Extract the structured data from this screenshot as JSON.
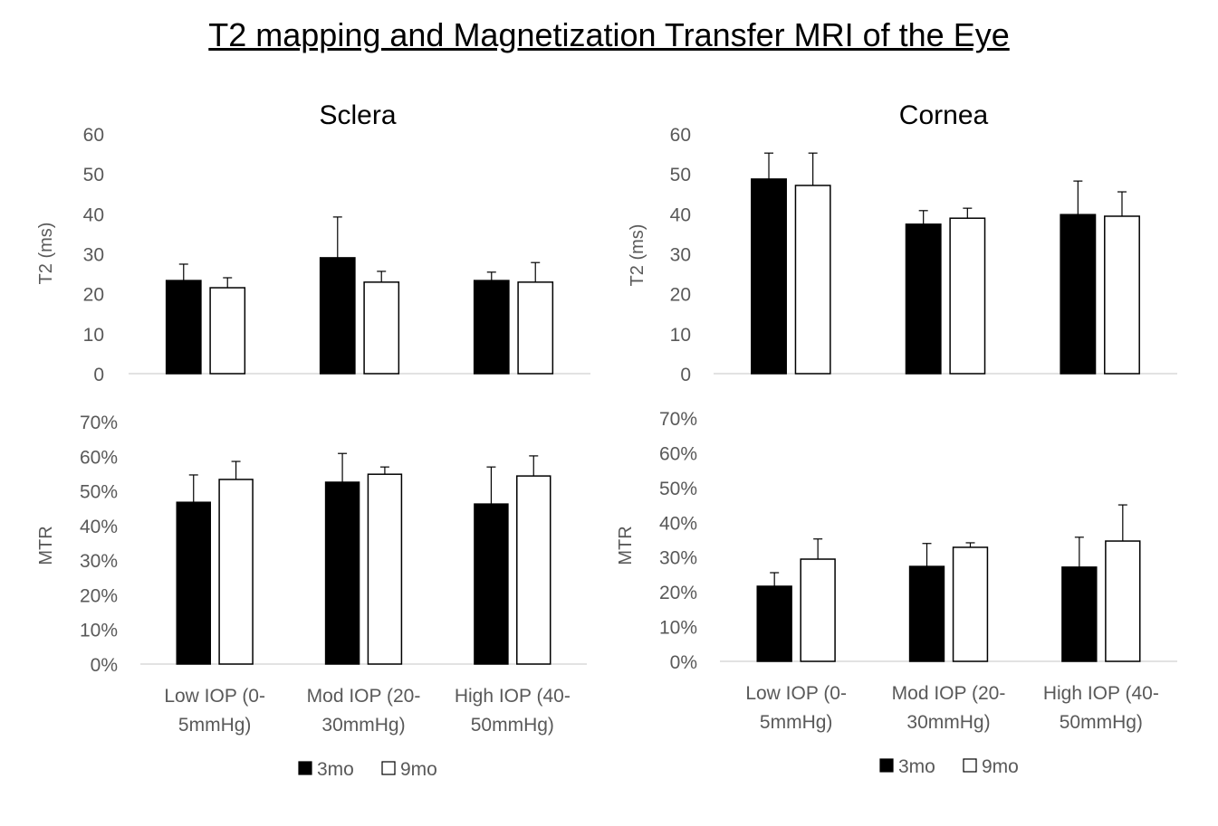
{
  "title": "T2 mapping and Magnetization Transfer MRI of the Eye",
  "chart_data": [
    {
      "type": "bar",
      "panel": "Sclera T2",
      "title": "Sclera",
      "xlabel": "",
      "ylabel": "T2 (ms)",
      "ylim": [
        0,
        60
      ],
      "yticks": [
        "0",
        "10",
        "20",
        "30",
        "40",
        "50",
        "60"
      ],
      "categories": [
        "Low IOP (0-5mmHg)",
        "Mod IOP (20-30mmHg)",
        "High IOP (40-50mmHg)"
      ],
      "show_categories": false,
      "grid": false,
      "series": [
        {
          "name": "3mo",
          "color": "#000000",
          "values": [
            23.3,
            29.0,
            23.3
          ],
          "error_upper": [
            27.4,
            39.2,
            25.4
          ]
        },
        {
          "name": "9mo",
          "color": "#ffffff",
          "values": [
            21.5,
            22.9,
            22.9
          ],
          "error_upper": [
            24.0,
            25.6,
            27.8
          ]
        }
      ]
    },
    {
      "type": "bar",
      "panel": "Cornea T2",
      "title": "Cornea",
      "xlabel": "",
      "ylabel": "T2 (ms)",
      "ylim": [
        0,
        60
      ],
      "yticks": [
        "0",
        "10",
        "20",
        "30",
        "40",
        "50",
        "60"
      ],
      "categories": [
        "Low IOP (0-5mmHg)",
        "Mod IOP (20-30mmHg)",
        "High IOP (40-50mmHg)"
      ],
      "show_categories": false,
      "grid": false,
      "series": [
        {
          "name": "3mo",
          "color": "#000000",
          "values": [
            48.7,
            37.4,
            39.8
          ],
          "error_upper": [
            55.2,
            40.8,
            48.2
          ]
        },
        {
          "name": "9mo",
          "color": "#ffffff",
          "values": [
            47.1,
            38.9,
            39.4
          ],
          "error_upper": [
            55.2,
            41.4,
            45.5
          ]
        }
      ]
    },
    {
      "type": "bar",
      "panel": "Sclera MTR",
      "title": "",
      "xlabel": "",
      "ylabel": "MTR",
      "ylim": [
        0,
        70
      ],
      "yticks": [
        "0%",
        "10%",
        "20%",
        "30%",
        "40%",
        "50%",
        "60%",
        "70%"
      ],
      "categories": [
        "Low IOP (0-5mmHg)",
        "Mod IOP (20-30mmHg)",
        "High IOP (40-50mmHg)"
      ],
      "show_categories": true,
      "grid": false,
      "legend": "bottom",
      "series": [
        {
          "name": "3mo",
          "color": "#000000",
          "values": [
            46.7,
            52.5,
            46.2
          ],
          "error_upper": [
            54.6,
            60.8,
            56.9
          ]
        },
        {
          "name": "9mo",
          "color": "#ffffff",
          "values": [
            53.3,
            54.8,
            54.3
          ],
          "error_upper": [
            58.5,
            56.9,
            60.1
          ]
        }
      ]
    },
    {
      "type": "bar",
      "panel": "Cornea MTR",
      "title": "",
      "xlabel": "",
      "ylabel": "MTR",
      "ylim": [
        0,
        70
      ],
      "yticks": [
        "0%",
        "10%",
        "20%",
        "30%",
        "40%",
        "50%",
        "60%",
        "70%"
      ],
      "categories": [
        "Low IOP (0-5mmHg)",
        "Mod IOP (20-30mmHg)",
        "High IOP (40-50mmHg)"
      ],
      "show_categories": true,
      "grid": false,
      "legend": "bottom",
      "series": [
        {
          "name": "3mo",
          "color": "#000000",
          "values": [
            21.6,
            27.3,
            27.1
          ],
          "error_upper": [
            25.5,
            33.9,
            35.7
          ]
        },
        {
          "name": "9mo",
          "color": "#ffffff",
          "values": [
            29.4,
            32.8,
            34.6
          ],
          "error_upper": [
            35.2,
            34.1,
            45.0
          ]
        }
      ]
    }
  ]
}
